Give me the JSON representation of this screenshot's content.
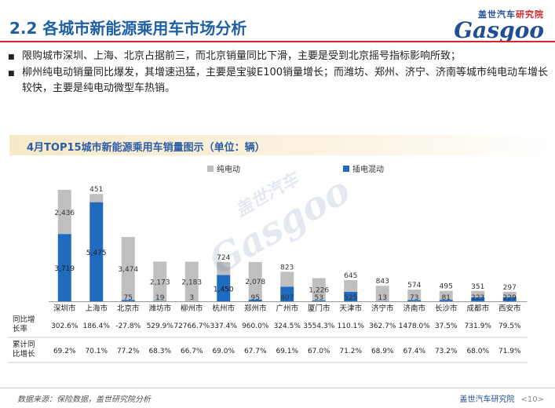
{
  "header": {
    "title": "2.2 各城市新能源乘用车市场分析",
    "logo_top_blue": "盖世汽车",
    "logo_top_red": "研究院",
    "logo_word": "Gasgoo"
  },
  "bullets": [
    "限购城市深圳、上海、北京占据前三，而北京销量同比下滑，主要是受到北京摇号指标影响所致；",
    "柳州纯电动销量同比爆发，其增速迅猛，主要是宝骏E100销量增长；而潍坊、郑州、济宁、济南等城市纯电动车增长较快，主要是纯电动微型车热销。"
  ],
  "footer": {
    "source": "数据来源：保险数据，盖世研究院分析",
    "org": "盖世汽车研究院",
    "page": "<10>"
  },
  "watermark": {
    "cn": "盖世汽车",
    "en": "Gasgoo"
  },
  "colors": {
    "bev": "#bfbfbf",
    "phev": "#1f6cbf",
    "title": "#1f5fa6",
    "rule": "#d7262b"
  },
  "chart_data": {
    "type": "bar",
    "stacked": true,
    "title": "4月TOP15城市新能源乘用车销量图示（单位：辆）",
    "categories": [
      "深圳市",
      "上海市",
      "北京市",
      "潍坊市",
      "柳州市",
      "杭州市",
      "郑州市",
      "广州市",
      "厦门市",
      "天津市",
      "济宁市",
      "济南市",
      "长沙市",
      "成都市",
      "西安市"
    ],
    "series": [
      {
        "name": "插电混动",
        "color": "#1f6cbf",
        "values": [
          3719,
          5475,
          75,
          19,
          3,
          1450,
          95,
          807,
          53,
          525,
          13,
          73,
          81,
          223,
          229
        ]
      },
      {
        "name": "纯电动",
        "color": "#bfbfbf",
        "values": [
          2436,
          451,
          3474,
          2173,
          2183,
          724,
          2078,
          823,
          1226,
          645,
          843,
          574,
          495,
          351,
          297
        ]
      }
    ],
    "legend_order": [
      "纯电动",
      "插电混动"
    ],
    "legend_position": "top",
    "ylim": [
      0,
      6500
    ],
    "grid": false,
    "table_rows": [
      {
        "label_line1": "同比增",
        "label_line2": "长率",
        "values": [
          "302.6%",
          "186.4%",
          "-27.8%",
          "529.9%",
          "72766.7%",
          "337.4%",
          "960.0%",
          "324.5%",
          "3554.3%",
          "110.1%",
          "362.7%",
          "1478.0%",
          "37.5%",
          "731.9%",
          "79.5%"
        ]
      },
      {
        "label_line1": "累计同",
        "label_line2": "比增长",
        "values": [
          "69.2%",
          "70.1%",
          "77.2%",
          "68.3%",
          "66.7%",
          "69.0%",
          "67.7%",
          "69.1%",
          "67.0%",
          "71.2%",
          "68.9%",
          "67.4%",
          "73.2%",
          "68.0%",
          "71.9%"
        ]
      }
    ]
  }
}
